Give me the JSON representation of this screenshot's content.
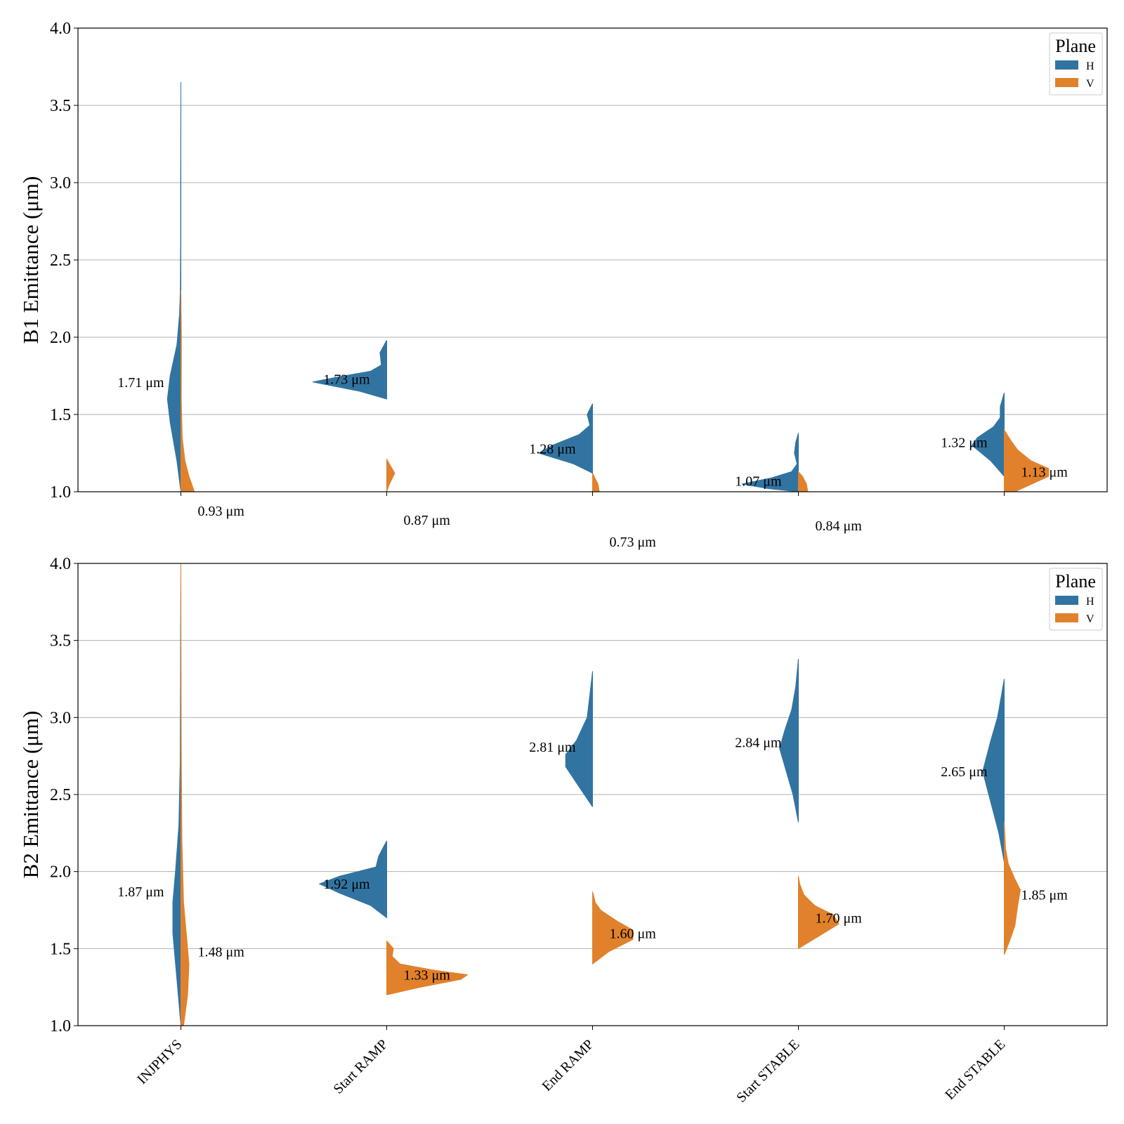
{
  "colors": {
    "H": "#3274a1",
    "V": "#e1812c"
  },
  "chart_data": [
    {
      "type": "violin",
      "ylabel": "B1 Emittance (μm)",
      "ylim": [
        1.0,
        4.0
      ],
      "yticks": [
        "1.0",
        "1.5",
        "2.0",
        "2.5",
        "3.0",
        "3.5",
        "4.0"
      ],
      "categories": [
        "INJPHYS",
        "Start RAMP",
        "End RAMP",
        "Start STABLE",
        "End STABLE"
      ],
      "grid": true,
      "legend": {
        "title": "Plane",
        "placement": "top-right",
        "entries": [
          "H",
          "V"
        ]
      },
      "series": [
        {
          "name": "H",
          "side": "left",
          "medians": [
            1.71,
            1.73,
            1.28,
            1.07,
            1.32
          ],
          "labels": [
            "1.71 μm",
            "1.73 μm",
            "1.28 μm",
            "1.07 μm",
            "1.32 μm"
          ],
          "profiles": [
            [
              [
                1.0,
                0.0
              ],
              [
                1.2,
                0.03
              ],
              [
                1.45,
                0.08
              ],
              [
                1.6,
                0.1
              ],
              [
                1.75,
                0.08
              ],
              [
                1.95,
                0.03
              ],
              [
                2.15,
                0.01
              ],
              [
                2.3,
                0.004
              ],
              [
                2.6,
                0.002
              ],
              [
                3.0,
                0.002
              ],
              [
                3.3,
                0.001
              ],
              [
                3.65,
                0.0
              ]
            ],
            [
              [
                1.6,
                0.0
              ],
              [
                1.65,
                0.2
              ],
              [
                1.71,
                0.55
              ],
              [
                1.74,
                0.38
              ],
              [
                1.78,
                0.12
              ],
              [
                1.82,
                0.04
              ],
              [
                1.9,
                0.05
              ],
              [
                1.98,
                0.0
              ]
            ],
            [
              [
                1.12,
                0.0
              ],
              [
                1.18,
                0.14
              ],
              [
                1.25,
                0.4
              ],
              [
                1.3,
                0.3
              ],
              [
                1.37,
                0.1
              ],
              [
                1.43,
                0.02
              ],
              [
                1.5,
                0.04
              ],
              [
                1.57,
                0.0
              ]
            ],
            [
              [
                1.0,
                0.0
              ],
              [
                1.02,
                0.22
              ],
              [
                1.05,
                0.42
              ],
              [
                1.09,
                0.2
              ],
              [
                1.13,
                0.05
              ],
              [
                1.18,
                0.01
              ],
              [
                1.25,
                0.03
              ],
              [
                1.32,
                0.02
              ],
              [
                1.38,
                0.0
              ]
            ],
            [
              [
                1.1,
                0.0
              ],
              [
                1.2,
                0.1
              ],
              [
                1.3,
                0.24
              ],
              [
                1.35,
                0.2
              ],
              [
                1.42,
                0.08
              ],
              [
                1.48,
                0.03
              ],
              [
                1.55,
                0.03
              ],
              [
                1.64,
                0.0
              ]
            ]
          ]
        },
        {
          "name": "V",
          "side": "right",
          "medians": [
            0.93,
            0.87,
            0.73,
            0.84,
            1.13
          ],
          "labels": [
            "0.93 μm",
            "0.87 μm",
            "0.73 μm",
            "0.84 μm",
            "1.13 μm"
          ],
          "profiles": [
            [
              [
                1.0,
                0.1
              ],
              [
                1.1,
                0.06
              ],
              [
                1.2,
                0.03
              ],
              [
                1.35,
                0.01
              ],
              [
                1.6,
                0.003
              ],
              [
                2.0,
                0.004
              ],
              [
                2.3,
                0.0
              ]
            ],
            [
              [
                1.0,
                0.0
              ],
              [
                1.05,
                0.02
              ],
              [
                1.12,
                0.06
              ],
              [
                1.18,
                0.02
              ],
              [
                1.21,
                0.0
              ]
            ],
            [
              [
                1.0,
                0.05
              ],
              [
                1.05,
                0.04
              ],
              [
                1.12,
                0.0
              ]
            ],
            [
              [
                1.0,
                0.07
              ],
              [
                1.05,
                0.06
              ],
              [
                1.1,
                0.03
              ],
              [
                1.13,
                0.0
              ]
            ],
            [
              [
                1.0,
                0.08
              ],
              [
                1.04,
                0.18
              ],
              [
                1.1,
                0.33
              ],
              [
                1.15,
                0.33
              ],
              [
                1.2,
                0.2
              ],
              [
                1.27,
                0.1
              ],
              [
                1.33,
                0.05
              ],
              [
                1.4,
                0.0
              ]
            ]
          ]
        }
      ]
    },
    {
      "type": "violin",
      "ylabel": "B2 Emittance (μm)",
      "ylim": [
        1.0,
        4.0
      ],
      "yticks": [
        "1.0",
        "1.5",
        "2.0",
        "2.5",
        "3.0",
        "3.5",
        "4.0"
      ],
      "categories": [
        "INJPHYS",
        "Start RAMP",
        "End RAMP",
        "Start STABLE",
        "End STABLE"
      ],
      "grid": true,
      "legend": {
        "title": "Plane",
        "placement": "top-right",
        "entries": [
          "H",
          "V"
        ]
      },
      "series": [
        {
          "name": "H",
          "side": "left",
          "medians": [
            1.87,
            1.92,
            2.81,
            2.84,
            2.65
          ],
          "labels": [
            "1.87 μm",
            "1.92 μm",
            "2.81 μm",
            "2.84 μm",
            "2.65 μm"
          ],
          "profiles": [
            [
              [
                1.0,
                0.0
              ],
              [
                1.3,
                0.03
              ],
              [
                1.6,
                0.06
              ],
              [
                1.8,
                0.06
              ],
              [
                2.0,
                0.04
              ],
              [
                2.3,
                0.015
              ],
              [
                2.7,
                0.005
              ],
              [
                3.2,
                0.003
              ],
              [
                3.6,
                0.002
              ],
              [
                4.0,
                0.0
              ]
            ],
            [
              [
                1.7,
                0.0
              ],
              [
                1.78,
                0.12
              ],
              [
                1.86,
                0.35
              ],
              [
                1.92,
                0.5
              ],
              [
                1.97,
                0.35
              ],
              [
                2.03,
                0.08
              ],
              [
                2.1,
                0.06
              ],
              [
                2.2,
                0.0
              ]
            ],
            [
              [
                2.42,
                0.0
              ],
              [
                2.55,
                0.1
              ],
              [
                2.68,
                0.2
              ],
              [
                2.76,
                0.2
              ],
              [
                2.85,
                0.12
              ],
              [
                3.0,
                0.04
              ],
              [
                3.15,
                0.02
              ],
              [
                3.3,
                0.0
              ]
            ],
            [
              [
                2.32,
                0.0
              ],
              [
                2.5,
                0.04
              ],
              [
                2.68,
                0.1
              ],
              [
                2.8,
                0.14
              ],
              [
                2.92,
                0.1
              ],
              [
                3.05,
                0.05
              ],
              [
                3.2,
                0.02
              ],
              [
                3.38,
                0.0
              ]
            ],
            [
              [
                2.06,
                0.0
              ],
              [
                2.25,
                0.04
              ],
              [
                2.45,
                0.1
              ],
              [
                2.65,
                0.16
              ],
              [
                2.85,
                0.1
              ],
              [
                3.0,
                0.05
              ],
              [
                3.15,
                0.02
              ],
              [
                3.25,
                0.0
              ]
            ]
          ]
        },
        {
          "name": "V",
          "side": "right",
          "medians": [
            1.48,
            1.33,
            1.6,
            1.7,
            1.85
          ],
          "labels": [
            "1.48 μm",
            "1.33 μm",
            "1.60 μm",
            "1.70 μm",
            "1.85 μm"
          ],
          "profiles": [
            [
              [
                1.0,
                0.02
              ],
              [
                1.2,
                0.05
              ],
              [
                1.4,
                0.06
              ],
              [
                1.6,
                0.04
              ],
              [
                1.8,
                0.02
              ],
              [
                2.2,
                0.008
              ],
              [
                2.8,
                0.003
              ],
              [
                3.5,
                0.001
              ],
              [
                4.0,
                0.0
              ]
            ],
            [
              [
                1.2,
                0.0
              ],
              [
                1.25,
                0.25
              ],
              [
                1.3,
                0.55
              ],
              [
                1.33,
                0.6
              ],
              [
                1.36,
                0.35
              ],
              [
                1.4,
                0.1
              ],
              [
                1.45,
                0.04
              ],
              [
                1.5,
                0.05
              ],
              [
                1.55,
                0.0
              ]
            ],
            [
              [
                1.4,
                0.0
              ],
              [
                1.48,
                0.12
              ],
              [
                1.56,
                0.3
              ],
              [
                1.62,
                0.3
              ],
              [
                1.68,
                0.18
              ],
              [
                1.75,
                0.06
              ],
              [
                1.8,
                0.02
              ],
              [
                1.87,
                0.0
              ]
            ],
            [
              [
                1.5,
                0.0
              ],
              [
                1.58,
                0.15
              ],
              [
                1.66,
                0.3
              ],
              [
                1.72,
                0.26
              ],
              [
                1.78,
                0.12
              ],
              [
                1.85,
                0.04
              ],
              [
                1.92,
                0.01
              ],
              [
                1.97,
                0.0
              ]
            ],
            [
              [
                1.46,
                0.0
              ],
              [
                1.55,
                0.04
              ],
              [
                1.65,
                0.08
              ],
              [
                1.78,
                0.1
              ],
              [
                1.88,
                0.12
              ],
              [
                1.95,
                0.08
              ],
              [
                2.05,
                0.03
              ],
              [
                2.15,
                0.01
              ],
              [
                2.32,
                0.0
              ]
            ]
          ]
        }
      ]
    }
  ]
}
